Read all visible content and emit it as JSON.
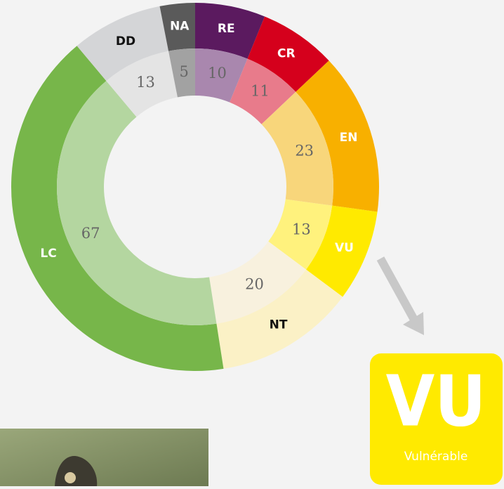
{
  "chart_data": {
    "type": "donut",
    "categories": [
      "RE",
      "CR",
      "EN",
      "VU",
      "NT",
      "LC",
      "DD",
      "NA"
    ],
    "values": [
      10,
      11,
      23,
      13,
      20,
      67,
      13,
      5
    ],
    "colors": [
      "#5b1a5f",
      "#d5001c",
      "#f8b000",
      "#ffea00",
      "#fbf1c6",
      "#77b64a",
      "#d4d5d7",
      "#5a5a5a"
    ],
    "inner_colors": [
      "#a987ae",
      "#e87b8b",
      "#f8d67b",
      "#fff27d",
      "#f8f1de",
      "#b4d6a0",
      "#e4e4e4",
      "#a2a2a2"
    ],
    "label_colors": [
      "#ffffff",
      "#ffffff",
      "#ffffff",
      "#ffffff",
      "#111111",
      "#ffffff",
      "#111111",
      "#ffffff"
    ]
  },
  "badge": {
    "code": "VU",
    "label": "Vulnérable"
  }
}
